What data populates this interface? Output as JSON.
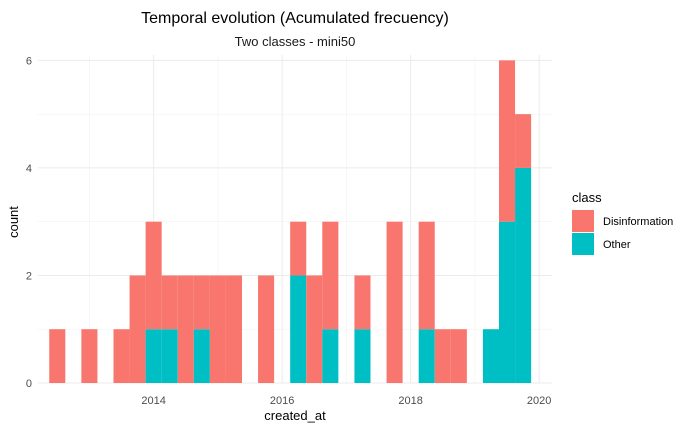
{
  "chart_data": {
    "type": "bar",
    "stacked": true,
    "title": "Temporal evolution (Acumulated frecuency)",
    "subtitle": "Two classes - mini50",
    "xlabel": "created_at",
    "ylabel": "count",
    "xlim": [
      2012.2,
      2020.2
    ],
    "ylim": [
      0,
      6.1
    ],
    "xticks": [
      2014,
      2016,
      2018,
      2020
    ],
    "yticks": [
      0,
      2,
      4,
      6
    ],
    "grid": true,
    "bin_width": 0.25,
    "legend": {
      "title": "class",
      "placement": "right",
      "entries": [
        {
          "name": "Disinformation",
          "color": "#F8766D"
        },
        {
          "name": "Other",
          "color": "#00BFC4"
        }
      ]
    },
    "bins": [
      {
        "x": 2012.5,
        "Disinformation": 1,
        "Other": 0
      },
      {
        "x": 2013.0,
        "Disinformation": 1,
        "Other": 0
      },
      {
        "x": 2013.5,
        "Disinformation": 1,
        "Other": 0
      },
      {
        "x": 2013.75,
        "Disinformation": 2,
        "Other": 0
      },
      {
        "x": 2014.0,
        "Disinformation": 2,
        "Other": 1
      },
      {
        "x": 2014.25,
        "Disinformation": 1,
        "Other": 1
      },
      {
        "x": 2014.5,
        "Disinformation": 2,
        "Other": 0
      },
      {
        "x": 2014.75,
        "Disinformation": 1,
        "Other": 1
      },
      {
        "x": 2015.0,
        "Disinformation": 2,
        "Other": 0
      },
      {
        "x": 2015.25,
        "Disinformation": 2,
        "Other": 0
      },
      {
        "x": 2015.75,
        "Disinformation": 2,
        "Other": 0
      },
      {
        "x": 2016.25,
        "Disinformation": 1,
        "Other": 2
      },
      {
        "x": 2016.5,
        "Disinformation": 2,
        "Other": 0
      },
      {
        "x": 2016.75,
        "Disinformation": 2,
        "Other": 1
      },
      {
        "x": 2017.25,
        "Disinformation": 1,
        "Other": 1
      },
      {
        "x": 2017.75,
        "Disinformation": 3,
        "Other": 0
      },
      {
        "x": 2018.25,
        "Disinformation": 2,
        "Other": 1
      },
      {
        "x": 2018.5,
        "Disinformation": 1,
        "Other": 0
      },
      {
        "x": 2018.75,
        "Disinformation": 1,
        "Other": 0
      },
      {
        "x": 2019.25,
        "Disinformation": 0,
        "Other": 1
      },
      {
        "x": 2019.5,
        "Disinformation": 3,
        "Other": 3
      },
      {
        "x": 2019.75,
        "Disinformation": 1,
        "Other": 4
      }
    ]
  }
}
